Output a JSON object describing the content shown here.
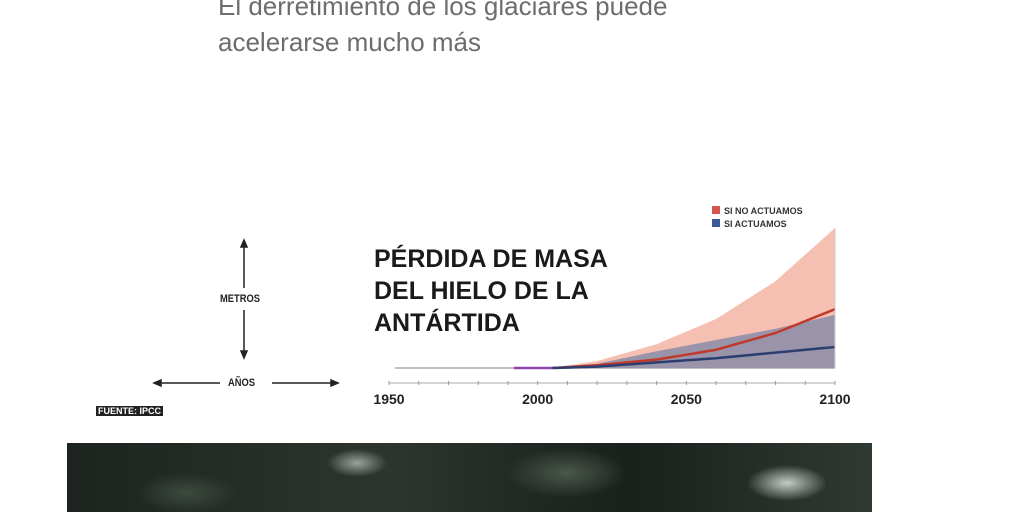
{
  "headline": {
    "line1": "El derretimiento de los glaciares puede",
    "line2": "acelerarse mucho más"
  },
  "axis_legend": {
    "y_label": "METROS",
    "x_label": "AÑOS"
  },
  "source": "FUENTE: IPCC",
  "chart_data": {
    "type": "area",
    "title": "PÉRDIDA DE MASA DEL HIELO DE LA ANTÁRTIDA",
    "title_lines": [
      "PÉRDIDA DE MASA",
      "DEL HIELO DE LA",
      "ANTÁRTIDA"
    ],
    "xlabel": "AÑOS",
    "ylabel": "METROS",
    "xlim": [
      1950,
      2100
    ],
    "ylim": [
      0,
      1
    ],
    "x_ticks": [
      1950,
      2000,
      2050,
      2100
    ],
    "legend_placement": "top-right",
    "series": [
      {
        "name": "SI NO ACTUAMOS",
        "color": "#c0392b",
        "band_color": "#f4b9a8",
        "x": [
          2005,
          2020,
          2040,
          2060,
          2080,
          2100
        ],
        "median": [
          0,
          0.02,
          0.06,
          0.13,
          0.25,
          0.42
        ],
        "upper": [
          0,
          0.05,
          0.17,
          0.35,
          0.62,
          1.0
        ],
        "lower": [
          0,
          0,
          0,
          0,
          0,
          0
        ]
      },
      {
        "name": "SI ACTUAMOS",
        "color": "#2c3e70",
        "band_color": "#7a86a8",
        "x": [
          2005,
          2020,
          2040,
          2060,
          2080,
          2100
        ],
        "median": [
          0,
          0.01,
          0.04,
          0.07,
          0.11,
          0.15
        ],
        "upper": [
          0,
          0.03,
          0.12,
          0.2,
          0.28,
          0.38
        ],
        "lower": [
          0,
          0,
          0,
          0,
          0,
          0
        ]
      }
    ],
    "observed": {
      "color": "#8e44ad",
      "x": [
        1992,
        2005
      ]
    },
    "grid": false
  }
}
